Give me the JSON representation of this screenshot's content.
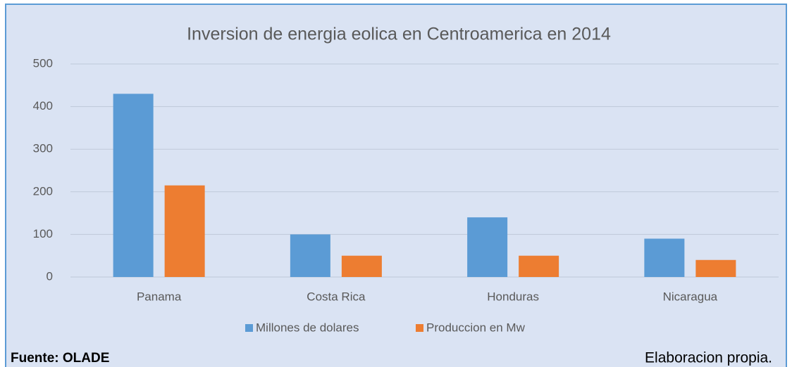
{
  "chart_data": {
    "type": "bar",
    "title": "Inversion de energia eolica en Centroamerica en 2014",
    "categories": [
      "Panama",
      "Costa Rica",
      "Honduras",
      "Nicaragua"
    ],
    "series": [
      {
        "name": "Millones de dolares",
        "color": "#5b9bd5",
        "values": [
          430,
          100,
          140,
          90
        ]
      },
      {
        "name": "Produccion en Mw",
        "color": "#ed7d31",
        "values": [
          215,
          50,
          50,
          40
        ]
      }
    ],
    "ylim": [
      0,
      500
    ],
    "yticks": [
      0,
      100,
      200,
      300,
      400,
      500
    ],
    "grid": true,
    "legend": "bottom",
    "source": "Fuente: OLADE",
    "note": "Elaboracion propia."
  }
}
